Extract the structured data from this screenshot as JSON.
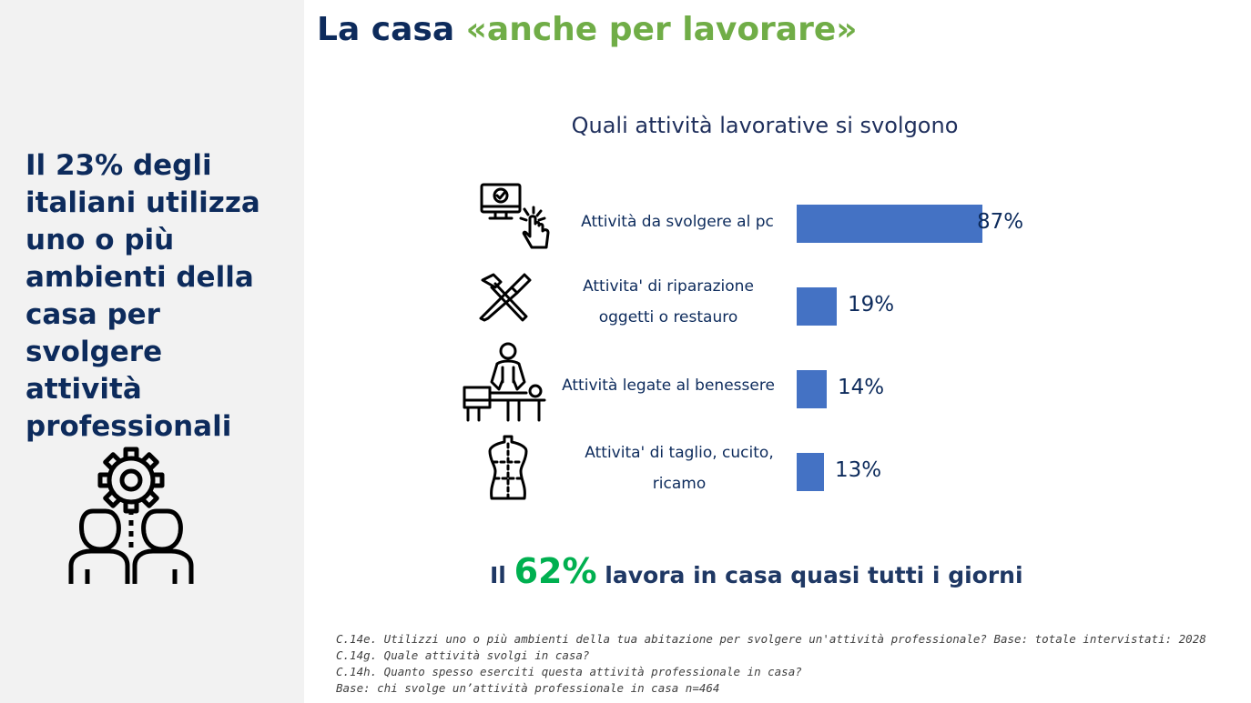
{
  "title": {
    "main": "La casa ",
    "accent": "«anche per lavorare»"
  },
  "sidebar": {
    "headline_lines": [
      "Il 23% degli",
      "italiani utilizza",
      "uno o più",
      "ambienti della",
      "casa per svolgere",
      "attività",
      "professionali"
    ],
    "icon": "gear-people-icon"
  },
  "chart_data": {
    "type": "bar",
    "orientation": "horizontal",
    "title": "Quali attività lavorative si svolgono",
    "categories": [
      {
        "lines": [
          "Attività da svolgere al pc"
        ],
        "icon": "computer-click-icon"
      },
      {
        "lines": [
          "Attivita' di riparazione",
          "oggetti o restauro"
        ],
        "icon": "tools-icon"
      },
      {
        "lines": [
          "Attività legate al benessere"
        ],
        "icon": "massage-icon"
      },
      {
        "lines": [
          "Attivita' di taglio, cucito,",
          "ricamo"
        ],
        "icon": "mannequin-icon"
      }
    ],
    "values": [
      87,
      19,
      14,
      13
    ],
    "value_labels": [
      "87%",
      "19%",
      "14%",
      "13%"
    ],
    "xlim": [
      0,
      100
    ],
    "bar_color": "#4472c4",
    "grid": false,
    "legend": "none"
  },
  "highlight": {
    "prefix": "Il ",
    "value": "62%",
    "suffix": " lavora in casa quasi tutti i giorni"
  },
  "notes": [
    "C.14e. Utilizzi uno o più ambienti della tua abitazione per svolgere un'attività professionale? Base: totale intervistati: 2028",
    "C.14g. Quale attività svolgi in casa?",
    "C.14h. Quanto spesso eserciti questa attività professionale in casa?",
    "Base: chi svolge un’attività professionale in casa n=464"
  ],
  "colors": {
    "navy": "#0d2b5c",
    "green_accent": "#70ad47",
    "highlight_green": "#00b050",
    "panel_bg": "#f2f2f2"
  }
}
